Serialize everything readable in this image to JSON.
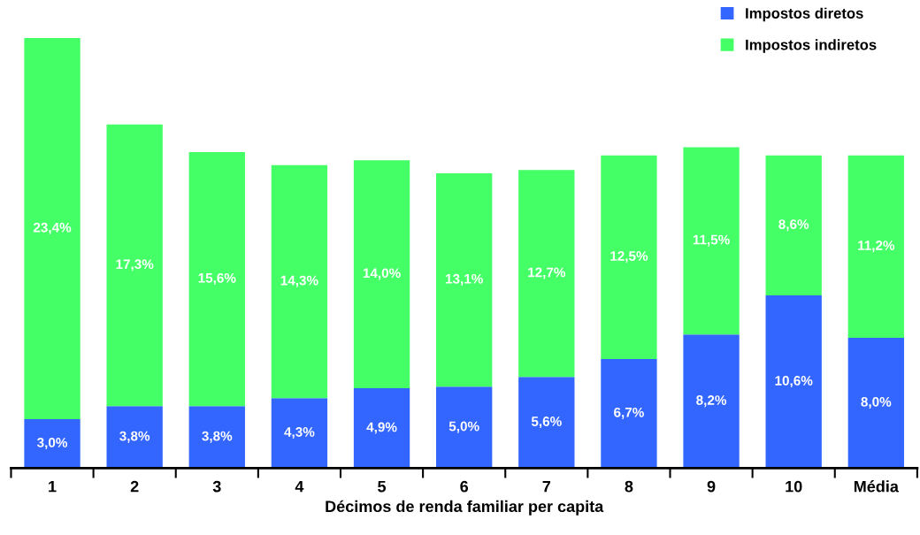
{
  "chart_data": {
    "type": "bar",
    "stacked": true,
    "xlabel": "Décimos de renda familiar per capita",
    "categories": [
      "1",
      "2",
      "3",
      "4",
      "5",
      "6",
      "7",
      "8",
      "9",
      "10",
      "Média"
    ],
    "series": [
      {
        "name": "Impostos diretos",
        "color": "#3366ff",
        "values": [
          3.0,
          3.8,
          3.8,
          4.3,
          4.9,
          5.0,
          5.6,
          6.7,
          8.2,
          10.6,
          8.0
        ],
        "value_labels": [
          "3,0%",
          "3,8%",
          "3,8%",
          "4,3%",
          "4,9%",
          "5,0%",
          "5,6%",
          "6,7%",
          "8,2%",
          "10,6%",
          "8,0%"
        ]
      },
      {
        "name": "Impostos indiretos",
        "color": "#44ff66",
        "values": [
          23.4,
          17.3,
          15.6,
          14.3,
          14.0,
          13.1,
          12.7,
          12.5,
          11.5,
          8.6,
          11.2
        ],
        "value_labels": [
          "23,4%",
          "17,3%",
          "15,6%",
          "14,3%",
          "14,0%",
          "13,1%",
          "12,7%",
          "12,5%",
          "11,5%",
          "8,6%",
          "11,2%"
        ]
      }
    ],
    "legend": "top right",
    "grid": false
  }
}
